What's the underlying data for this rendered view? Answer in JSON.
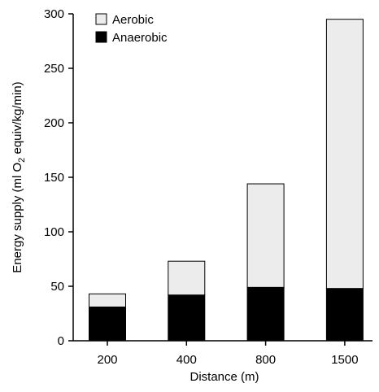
{
  "chart_data": {
    "type": "bar",
    "stacked": true,
    "categories": [
      "200",
      "400",
      "800",
      "1500"
    ],
    "series": [
      {
        "name": "Anaerobic",
        "values": [
          31,
          42,
          49,
          48
        ],
        "color": "#000000"
      },
      {
        "name": "Aerobic",
        "values": [
          12,
          31,
          95,
          247
        ],
        "color": "#ececec"
      }
    ],
    "legend_order": [
      "Aerobic",
      "Anaerobic"
    ],
    "legend_position": "top-left",
    "xlabel": "Distance (m)",
    "ylabel": {
      "pre": "Energy supply (ml O",
      "sub": "2",
      "post": " equiv/kg/min)"
    },
    "ylim": [
      0,
      300
    ],
    "yticks": [
      0,
      50,
      100,
      150,
      200,
      250,
      300
    ],
    "grid": false
  }
}
